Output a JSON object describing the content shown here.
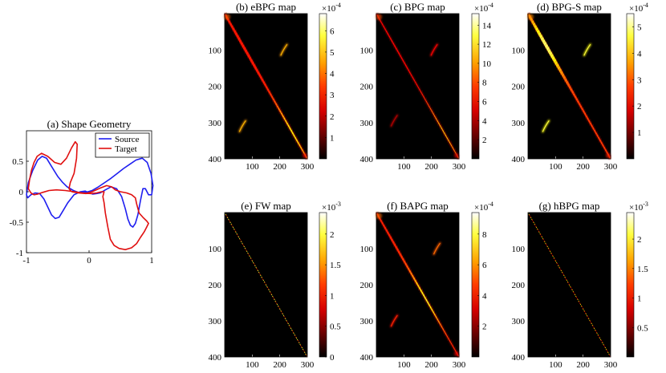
{
  "figure": {
    "caption": ""
  },
  "chart_data": [
    {
      "id": "a",
      "type": "line",
      "title": "(a) Shape Geometry",
      "xlim": [
        -1,
        1
      ],
      "ylim": [
        -1,
        1
      ],
      "xticks": [
        -1,
        0,
        1
      ],
      "xtick_labels": [
        "-1",
        "0",
        "1"
      ],
      "yticks": [
        0.5,
        0,
        -0.5,
        -1
      ],
      "ytick_labels": [
        "0.5",
        "0",
        "-0.5",
        "-1"
      ],
      "legend_position": "top-right",
      "series": [
        {
          "name": "Source",
          "color": "#1f1ff0",
          "x": [
            -1.0,
            -0.97,
            -0.9,
            -0.82,
            -0.75,
            -0.68,
            -0.62,
            -0.56,
            -0.5,
            -0.43,
            -0.35,
            -0.25,
            -0.15,
            -0.05,
            0.05,
            0.15,
            0.25,
            0.35,
            0.45,
            0.55,
            0.65,
            0.75,
            0.85,
            0.93,
            0.99,
            1.02,
            1.0,
            0.95,
            0.9,
            0.86,
            0.82,
            0.78,
            0.74,
            0.7,
            0.66,
            0.62,
            0.58,
            0.52,
            0.44,
            0.35,
            0.26,
            0.18,
            0.12,
            0.06,
            0.0,
            -0.06,
            -0.14,
            -0.24,
            -0.34,
            -0.42,
            -0.48,
            -0.54,
            -0.6,
            -0.66,
            -0.72,
            -0.79,
            -0.86,
            -0.93,
            -0.98,
            -1.0
          ],
          "y": [
            -0.05,
            0.15,
            0.35,
            0.52,
            0.58,
            0.55,
            0.45,
            0.35,
            0.25,
            0.16,
            0.08,
            0.02,
            -0.02,
            -0.01,
            0.02,
            0.08,
            0.15,
            0.22,
            0.3,
            0.38,
            0.45,
            0.52,
            0.55,
            0.48,
            0.3,
            0.1,
            -0.05,
            -0.05,
            0.05,
            0.05,
            -0.15,
            -0.38,
            -0.52,
            -0.58,
            -0.55,
            -0.45,
            -0.28,
            -0.08,
            0.05,
            0.08,
            0.03,
            -0.02,
            -0.03,
            -0.04,
            -0.02,
            0.01,
            0.0,
            -0.05,
            -0.18,
            -0.32,
            -0.42,
            -0.44,
            -0.38,
            -0.25,
            -0.12,
            -0.03,
            -0.02,
            -0.05,
            -0.1,
            -0.05
          ]
        },
        {
          "name": "Target",
          "color": "#e01010",
          "x": [
            -0.97,
            -0.95,
            -0.92,
            -0.88,
            -0.83,
            -0.76,
            -0.66,
            -0.55,
            -0.45,
            -0.36,
            -0.28,
            -0.22,
            -0.19,
            -0.2,
            -0.24,
            -0.3,
            -0.32,
            -0.28,
            -0.18,
            -0.05,
            0.05,
            0.18,
            0.28,
            0.36,
            0.42,
            0.5,
            0.6,
            0.68,
            0.74,
            0.76,
            0.8,
            0.86,
            0.92,
            0.95,
            0.92,
            0.88,
            0.82,
            0.76,
            0.68,
            0.58,
            0.48,
            0.4,
            0.34,
            0.3,
            0.26,
            0.24,
            0.22,
            0.24,
            0.2,
            0.12,
            0.02,
            -0.1,
            -0.24,
            -0.38,
            -0.52,
            -0.64,
            -0.74,
            -0.82,
            -0.88,
            -0.93,
            -0.97
          ],
          "y": [
            0.05,
            0.2,
            0.35,
            0.48,
            0.58,
            0.63,
            0.58,
            0.48,
            0.45,
            0.55,
            0.72,
            0.82,
            0.78,
            0.55,
            0.3,
            0.15,
            0.05,
            0.0,
            -0.02,
            -0.03,
            0.0,
            0.06,
            0.1,
            0.08,
            0.03,
            0.0,
            -0.02,
            -0.05,
            -0.1,
            -0.2,
            -0.35,
            -0.42,
            -0.48,
            -0.52,
            -0.58,
            -0.66,
            -0.75,
            -0.85,
            -0.92,
            -0.95,
            -0.93,
            -0.88,
            -0.78,
            -0.58,
            -0.35,
            -0.18,
            -0.08,
            0.0,
            0.0,
            -0.02,
            -0.03,
            -0.02,
            0.0,
            0.02,
            0.03,
            0.02,
            -0.01,
            -0.04,
            -0.05,
            -0.02,
            0.05
          ]
        }
      ]
    },
    {
      "id": "b",
      "type": "heatmap",
      "title": "(b) eBPG map",
      "xlim": [
        0,
        300
      ],
      "ylim": [
        0,
        400
      ],
      "xticks": [
        100,
        200,
        300
      ],
      "yticks": [
        100,
        200,
        300,
        400
      ],
      "colorbar": {
        "ticks": [
          1,
          2,
          3,
          4,
          5,
          6
        ],
        "max": 6.8,
        "exponent_label": "×10",
        "exponent_power": "-4"
      },
      "diagonal": {
        "start": [
          0,
          0
        ],
        "end": [
          300,
          400
        ],
        "peak_frac": 0.82,
        "intensity": 0.75,
        "width_frac": 0.35
      },
      "blobs": [
        {
          "x": 65,
          "y": 310,
          "intensity": 0.6
        },
        {
          "x": 215,
          "y": 100,
          "intensity": 0.6
        }
      ]
    },
    {
      "id": "c",
      "type": "heatmap",
      "title": "(c) BPG map",
      "xlim": [
        0,
        300
      ],
      "ylim": [
        0,
        400
      ],
      "xticks": [
        100,
        200,
        300
      ],
      "yticks": [
        100,
        200,
        300,
        400
      ],
      "colorbar": {
        "ticks": [
          2,
          4,
          6,
          8,
          10,
          12,
          14
        ],
        "max": 15.2,
        "exponent_label": "×10",
        "exponent_power": "-4"
      },
      "diagonal": {
        "start": [
          0,
          0
        ],
        "end": [
          300,
          400
        ],
        "peak_frac": 0.82,
        "intensity": 0.7,
        "width_frac": 0.12
      },
      "blobs": [
        {
          "x": 65,
          "y": 295,
          "intensity": 0.25
        },
        {
          "x": 210,
          "y": 100,
          "intensity": 0.35
        }
      ]
    },
    {
      "id": "d",
      "type": "heatmap",
      "title": "(d) BPG-S map",
      "xlim": [
        0,
        300
      ],
      "ylim": [
        0,
        400
      ],
      "xticks": [
        100,
        200,
        300
      ],
      "yticks": [
        100,
        200,
        300,
        400
      ],
      "colorbar": {
        "ticks": [
          1,
          2,
          3,
          4,
          5
        ],
        "max": 5.5,
        "exponent_label": "×10",
        "exponent_power": "-4"
      },
      "diagonal": {
        "start": [
          0,
          0
        ],
        "end": [
          300,
          400
        ],
        "peak_frac": 0.22,
        "intensity": 0.85,
        "width_frac": 0.45
      },
      "blobs": [
        {
          "x": 65,
          "y": 310,
          "intensity": 0.75
        },
        {
          "x": 215,
          "y": 100,
          "intensity": 0.75
        }
      ]
    },
    {
      "id": "e",
      "type": "heatmap",
      "title": "(e) FW map",
      "xlim": [
        0,
        300
      ],
      "ylim": [
        0,
        400
      ],
      "xticks": [
        100,
        200,
        300
      ],
      "yticks": [
        100,
        200,
        300,
        400
      ],
      "colorbar": {
        "ticks": [
          0,
          0.5,
          1,
          1.5,
          2
        ],
        "tick_labels": [
          "0",
          "0.5",
          "1",
          "1.5",
          "2"
        ],
        "max": 2.35,
        "min": 0,
        "exponent_label": "×10",
        "exponent_power": "-3"
      },
      "diagonal": {
        "start": [
          0,
          0
        ],
        "end": [
          300,
          400
        ],
        "peak_frac": 0.5,
        "intensity": 0.8,
        "width_frac": 0.06,
        "dotted": true
      },
      "blobs": []
    },
    {
      "id": "f",
      "type": "heatmap",
      "title": "(f) BAPG map",
      "xlim": [
        0,
        300
      ],
      "ylim": [
        0,
        400
      ],
      "xticks": [
        100,
        200,
        300
      ],
      "yticks": [
        100,
        200,
        300,
        400
      ],
      "colorbar": {
        "ticks": [
          2,
          4,
          6,
          8
        ],
        "max": 9.4,
        "exponent_label": "×10",
        "exponent_power": "-4"
      },
      "diagonal": {
        "start": [
          0,
          0
        ],
        "end": [
          300,
          400
        ],
        "peak_frac": 0.6,
        "intensity": 0.78,
        "width_frac": 0.25
      },
      "blobs": [
        {
          "x": 65,
          "y": 300,
          "intensity": 0.4
        },
        {
          "x": 220,
          "y": 100,
          "intensity": 0.5
        }
      ]
    },
    {
      "id": "g",
      "type": "heatmap",
      "title": "(g) hBPG map",
      "xlim": [
        0,
        300
      ],
      "ylim": [
        0,
        400
      ],
      "xticks": [
        100,
        200,
        300
      ],
      "yticks": [
        100,
        200,
        300,
        400
      ],
      "colorbar": {
        "ticks": [
          0.5,
          1,
          1.5,
          2
        ],
        "tick_labels": [
          "0.5",
          "1",
          "1.5",
          "2"
        ],
        "max": 2.45,
        "exponent_label": "×10",
        "exponent_power": "-3"
      },
      "diagonal": {
        "start": [
          0,
          0
        ],
        "end": [
          300,
          400
        ],
        "peak_frac": 0.5,
        "intensity": 0.7,
        "width_frac": 0.06,
        "dotted": true
      },
      "blobs": []
    }
  ]
}
